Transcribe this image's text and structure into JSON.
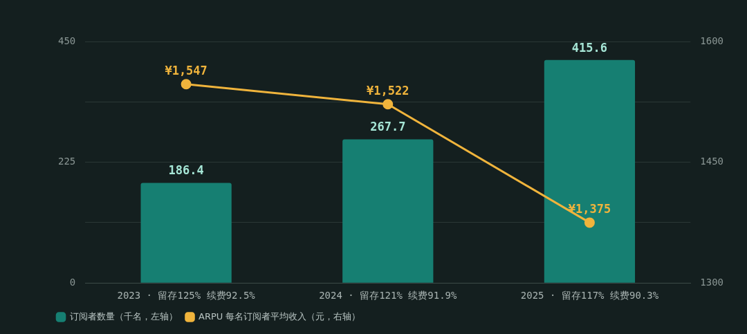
{
  "chart_data": {
    "type": "bar",
    "categories": [
      "2023 · 留存125% 续费92.5%",
      "2024 · 留存121% 续费91.9%",
      "2025 · 留存117% 续费90.3%"
    ],
    "series": [
      {
        "name": "订阅者数量（千名，左轴）",
        "color": "#167f72",
        "values": [
          186.4,
          267.7,
          415.6
        ],
        "value_labels": [
          "186.4",
          "267.7",
          "415.6"
        ]
      },
      {
        "name": "ARPU 每名订阅者平均收入（元，右轴）",
        "type": "line",
        "axis": "y2",
        "color": "#f0b43c",
        "values": [
          1547,
          1522,
          1375
        ],
        "value_labels": [
          "¥1,547",
          "¥1,522",
          "¥1,375"
        ]
      }
    ],
    "ylim": [
      0,
      450
    ],
    "yticks": [
      0,
      {
        "value": 112.5,
        "label": null
      },
      225,
      {
        "value": 337.5,
        "label": null
      },
      450
    ],
    "y2lim": [
      1300,
      1600
    ],
    "y2ticks": [
      1300,
      {
        "value": 1375,
        "label": null
      },
      1450,
      {
        "value": 1525,
        "label": null
      },
      1600
    ],
    "grid": "y",
    "legend": "bottom left",
    "marker": "circle",
    "line_style": "solid"
  }
}
